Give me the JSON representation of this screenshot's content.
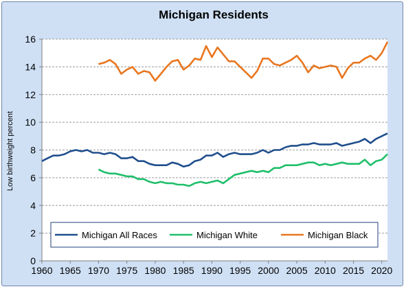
{
  "chart_data": {
    "type": "line",
    "title": "Michigan Residents",
    "ylabel": "Low birthweight percent",
    "xlabel": "",
    "xlim": [
      1960,
      2021
    ],
    "ylim": [
      0,
      16
    ],
    "xticks": [
      1960,
      1965,
      1970,
      1975,
      1980,
      1985,
      1990,
      1995,
      2000,
      2005,
      2010,
      2015,
      2020
    ],
    "yticks": [
      0,
      2,
      4,
      6,
      8,
      10,
      12,
      14,
      16
    ],
    "grid": "horizontal dashed",
    "legend_position": "bottom-inside",
    "series": [
      {
        "name": "Michigan All Races",
        "color": "#1f4e8c",
        "x": [
          1960,
          1961,
          1962,
          1963,
          1964,
          1965,
          1966,
          1967,
          1968,
          1969,
          1970,
          1971,
          1972,
          1973,
          1974,
          1975,
          1976,
          1977,
          1978,
          1979,
          1980,
          1981,
          1982,
          1983,
          1984,
          1985,
          1986,
          1987,
          1988,
          1989,
          1990,
          1991,
          1992,
          1993,
          1994,
          1995,
          1996,
          1997,
          1998,
          1999,
          2000,
          2001,
          2002,
          2003,
          2004,
          2005,
          2006,
          2007,
          2008,
          2009,
          2010,
          2011,
          2012,
          2013,
          2014,
          2015,
          2016,
          2017,
          2018,
          2019,
          2020,
          2021
        ],
        "y": [
          7.2,
          7.4,
          7.6,
          7.6,
          7.7,
          7.9,
          8.0,
          7.9,
          8.0,
          7.8,
          7.8,
          7.7,
          7.8,
          7.7,
          7.4,
          7.4,
          7.5,
          7.2,
          7.2,
          7.0,
          6.9,
          6.9,
          6.9,
          7.1,
          7.0,
          6.8,
          6.9,
          7.2,
          7.3,
          7.6,
          7.6,
          7.8,
          7.5,
          7.7,
          7.8,
          7.7,
          7.7,
          7.7,
          7.8,
          8.0,
          7.8,
          8.0,
          8.0,
          8.2,
          8.3,
          8.3,
          8.4,
          8.4,
          8.5,
          8.4,
          8.4,
          8.4,
          8.5,
          8.3,
          8.4,
          8.5,
          8.6,
          8.8,
          8.5,
          8.8,
          9.0,
          9.2
        ]
      },
      {
        "name": "Michigan White",
        "color": "#1fbf6a",
        "x": [
          1970,
          1971,
          1972,
          1973,
          1974,
          1975,
          1976,
          1977,
          1978,
          1979,
          1980,
          1981,
          1982,
          1983,
          1984,
          1985,
          1986,
          1987,
          1988,
          1989,
          1990,
          1991,
          1992,
          1993,
          1994,
          1995,
          1996,
          1997,
          1998,
          1999,
          2000,
          2001,
          2002,
          2003,
          2004,
          2005,
          2006,
          2007,
          2008,
          2009,
          2010,
          2011,
          2012,
          2013,
          2014,
          2015,
          2016,
          2017,
          2018,
          2019,
          2020,
          2021
        ],
        "y": [
          6.6,
          6.4,
          6.3,
          6.3,
          6.2,
          6.1,
          6.1,
          5.9,
          5.9,
          5.7,
          5.6,
          5.7,
          5.6,
          5.6,
          5.5,
          5.5,
          5.4,
          5.6,
          5.7,
          5.6,
          5.7,
          5.8,
          5.6,
          5.9,
          6.2,
          6.3,
          6.4,
          6.5,
          6.4,
          6.5,
          6.4,
          6.7,
          6.7,
          6.9,
          6.9,
          6.9,
          7.0,
          7.1,
          7.1,
          6.9,
          7.0,
          6.9,
          7.0,
          7.1,
          7.0,
          7.0,
          7.0,
          7.3,
          6.9,
          7.2,
          7.3,
          7.7
        ]
      },
      {
        "name": "Michigan Black",
        "color": "#e8761f",
        "x": [
          1970,
          1971,
          1972,
          1973,
          1974,
          1975,
          1976,
          1977,
          1978,
          1979,
          1980,
          1981,
          1982,
          1983,
          1984,
          1985,
          1986,
          1987,
          1988,
          1989,
          1990,
          1991,
          1992,
          1993,
          1994,
          1995,
          1996,
          1997,
          1998,
          1999,
          2000,
          2001,
          2002,
          2003,
          2004,
          2005,
          2006,
          2007,
          2008,
          2009,
          2010,
          2011,
          2012,
          2013,
          2014,
          2015,
          2016,
          2017,
          2018,
          2019,
          2020,
          2021
        ],
        "y": [
          14.2,
          14.3,
          14.5,
          14.2,
          13.5,
          13.8,
          14.0,
          13.5,
          13.7,
          13.6,
          13.0,
          13.5,
          14.0,
          14.4,
          14.5,
          13.8,
          14.1,
          14.6,
          14.5,
          15.5,
          14.7,
          15.4,
          14.9,
          14.4,
          14.4,
          14.0,
          13.6,
          13.2,
          13.7,
          14.6,
          14.6,
          14.2,
          14.1,
          14.3,
          14.5,
          14.8,
          14.3,
          13.6,
          14.1,
          13.9,
          14.0,
          14.1,
          14.0,
          13.2,
          13.9,
          14.3,
          14.3,
          14.6,
          14.8,
          14.5,
          15.0,
          15.8
        ]
      }
    ]
  }
}
